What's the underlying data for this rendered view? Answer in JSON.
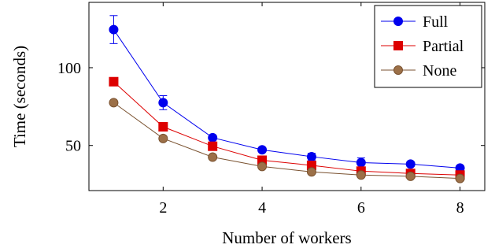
{
  "chart_data": {
    "type": "line",
    "title": "",
    "xlabel": "Number of workers",
    "ylabel": "Time (seconds)",
    "x": [
      1,
      2,
      3,
      4,
      5,
      6,
      7,
      8
    ],
    "xlim": [
      0.5,
      8.5
    ],
    "ylim": [
      21,
      142
    ],
    "xticks": [
      2,
      4,
      6,
      8
    ],
    "yticks": [
      50,
      100
    ],
    "grid": false,
    "legend_position": "top-right",
    "series": [
      {
        "name": "Full",
        "color": "#0000ee",
        "marker": "circle",
        "values": [
          124.5,
          77.5,
          55,
          47.2,
          42.8,
          39,
          38,
          35.5
        ],
        "error": [
          9,
          4.5,
          1.5,
          1.2,
          2.2,
          3,
          1.5,
          1.5
        ]
      },
      {
        "name": "Partial",
        "color": "#dd0000",
        "marker": "square",
        "values": [
          91,
          62,
          49.5,
          40.5,
          37.2,
          33.5,
          32,
          31
        ],
        "error": [
          1.5,
          2.5,
          2.5,
          1.5,
          1.5,
          1.2,
          1,
          1
        ]
      },
      {
        "name": "None",
        "color": "#7a5230",
        "marker_fill": "#9c7048",
        "marker": "circle",
        "values": [
          77.5,
          54.5,
          42.5,
          36.5,
          33,
          31,
          30.2,
          28.8
        ],
        "error": [
          1,
          1.5,
          1,
          1,
          1,
          1,
          0.8,
          0.8
        ]
      }
    ]
  }
}
